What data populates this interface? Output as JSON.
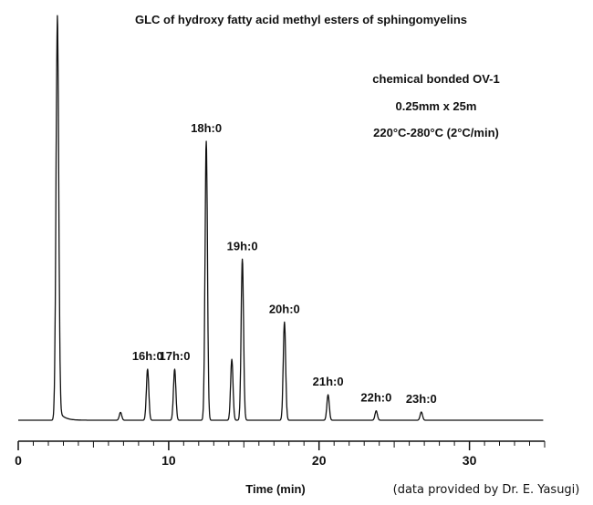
{
  "chart_data": {
    "type": "line",
    "title": "GLC of hydroxy fatty acid methyl esters of sphingomyelins",
    "xlabel": "Time (min)",
    "ylabel": "",
    "xlim": [
      0,
      35
    ],
    "ylim": [
      0,
      100
    ],
    "xticks": [
      0,
      10,
      20,
      30
    ],
    "grid": false,
    "legend": "none",
    "conditions": [
      "chemical bonded OV-1",
      "0.25mm x 25m",
      "220°C-280°C (2°C/min)"
    ],
    "credit": "(data provided by Dr. E. Yasugi)",
    "peaks": [
      {
        "label": "",
        "time": 2.6,
        "height": 100
      },
      {
        "label": "",
        "time": 6.8,
        "height": 2
      },
      {
        "label": "16h:0",
        "time": 8.6,
        "height": 13
      },
      {
        "label": "17h:0",
        "time": 10.4,
        "height": 13
      },
      {
        "label": "18h:0",
        "time": 12.5,
        "height": 71
      },
      {
        "label": "",
        "time": 14.2,
        "height": 15.5
      },
      {
        "label": "19h:0",
        "time": 14.9,
        "height": 41
      },
      {
        "label": "20h:0",
        "time": 17.7,
        "height": 25
      },
      {
        "label": "21h:0",
        "time": 20.6,
        "height": 6.5
      },
      {
        "label": "22h:0",
        "time": 23.8,
        "height": 2.4
      },
      {
        "label": "23h:0",
        "time": 26.8,
        "height": 2.1
      }
    ]
  }
}
